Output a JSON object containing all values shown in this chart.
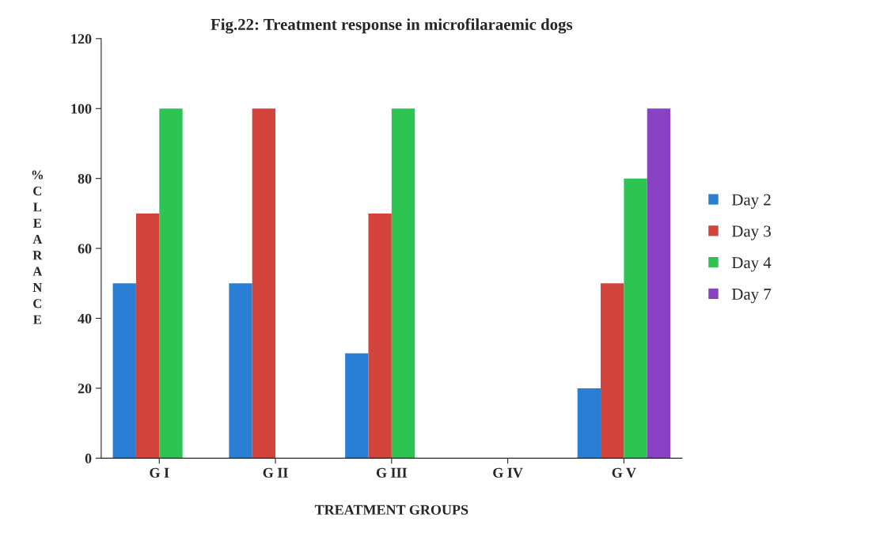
{
  "chart_data": {
    "type": "bar",
    "title": "Fig.22: Treatment response in microfilaraemic dogs",
    "xlabel": "TREATMENT GROUPS",
    "ylabel": "% CLEARANCE",
    "categories": [
      "G I",
      "G II",
      "G III",
      "G IV",
      "G V"
    ],
    "series": [
      {
        "name": "Day 2",
        "color": "#2a7fd4",
        "values": [
          50,
          50,
          30,
          null,
          20
        ]
      },
      {
        "name": "Day 3",
        "color": "#d2443c",
        "values": [
          70,
          100,
          70,
          null,
          50
        ]
      },
      {
        "name": "Day 4",
        "color": "#2ec454",
        "values": [
          100,
          null,
          100,
          null,
          80
        ]
      },
      {
        "name": "Day 7",
        "color": "#8a42c4",
        "values": [
          null,
          null,
          null,
          null,
          100
        ]
      }
    ],
    "ylim": [
      0,
      120
    ],
    "yticks": [
      0,
      20,
      40,
      60,
      80,
      100,
      120
    ],
    "grid": false,
    "legend": "right"
  }
}
